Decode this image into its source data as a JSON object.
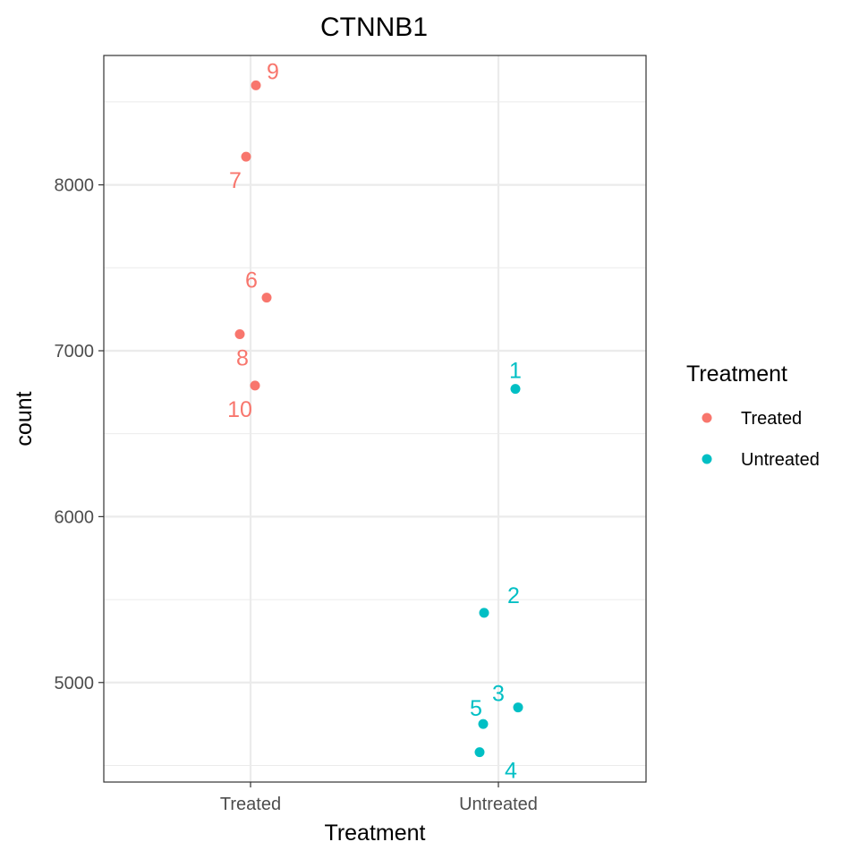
{
  "chart_data": {
    "type": "scatter",
    "title": "CTNNB1",
    "xlabel": "Treatment",
    "ylabel": "count",
    "categories": [
      "Treated",
      "Untreated"
    ],
    "ylim": [
      4400,
      8780
    ],
    "yticks": [
      5000,
      6000,
      7000,
      8000
    ],
    "ytick_labels": [
      "5000",
      "6000",
      "7000",
      "8000"
    ],
    "grid": true,
    "legend": {
      "title": "Treatment",
      "position": "right",
      "entries": [
        {
          "label": "Treated",
          "color": "#F8766D"
        },
        {
          "label": "Untreated",
          "color": "#00BFC4"
        }
      ]
    },
    "series": [
      {
        "color": "#F8766D",
        "points": [
          {
            "category": "Treated",
            "y": 8600,
            "label": "9"
          },
          {
            "category": "Treated",
            "y": 8170,
            "label": "7"
          },
          {
            "category": "Treated",
            "y": 7320,
            "label": "6"
          },
          {
            "category": "Treated",
            "y": 7100,
            "label": "8"
          },
          {
            "category": "Treated",
            "y": 6790,
            "label": "10"
          }
        ]
      },
      {
        "color": "#00BFC4",
        "points": [
          {
            "category": "Untreated",
            "y": 6770,
            "label": "1"
          },
          {
            "category": "Untreated",
            "y": 5420,
            "label": "2"
          },
          {
            "category": "Untreated",
            "y": 4850,
            "label": "3"
          },
          {
            "category": "Untreated",
            "y": 4750,
            "label": "5"
          },
          {
            "category": "Untreated",
            "y": 4580,
            "label": "4"
          }
        ]
      }
    ]
  }
}
